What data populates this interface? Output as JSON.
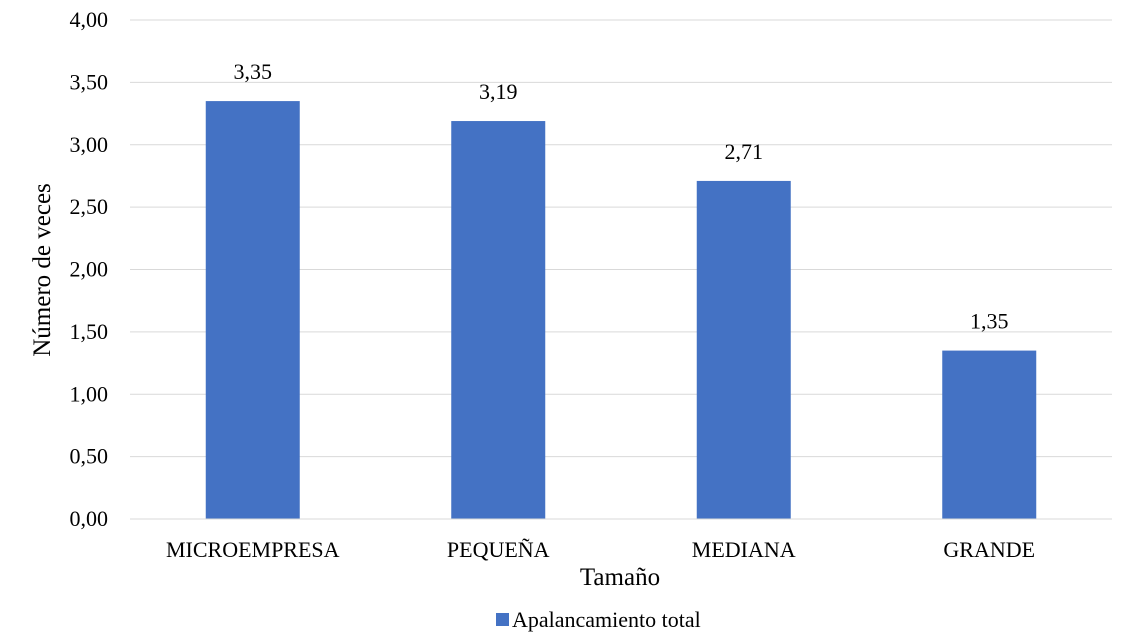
{
  "chart_data": {
    "type": "bar",
    "categories": [
      "MICROEMPRESA",
      "PEQUEÑA",
      "MEDIANA",
      "GRANDE"
    ],
    "series": [
      {
        "name": "Apalancamiento total",
        "values": [
          3.35,
          3.19,
          2.71,
          1.35
        ],
        "data_labels": [
          "3,35",
          "3,19",
          "2,71",
          "1,35"
        ],
        "color": "#4472C4"
      }
    ],
    "xlabel": "Tamaño",
    "ylabel": "Número de veces",
    "ylim": [
      0,
      4
    ],
    "y_ticks": [
      0,
      0.5,
      1,
      1.5,
      2,
      2.5,
      3,
      3.5,
      4
    ],
    "y_tick_labels": [
      "0,00",
      "0,50",
      "1,00",
      "1,50",
      "2,00",
      "2,50",
      "3,00",
      "3,50",
      "4,00"
    ],
    "grid": "horizontal",
    "gridline_color": "#D9D9D9",
    "legend_position": "bottom"
  }
}
